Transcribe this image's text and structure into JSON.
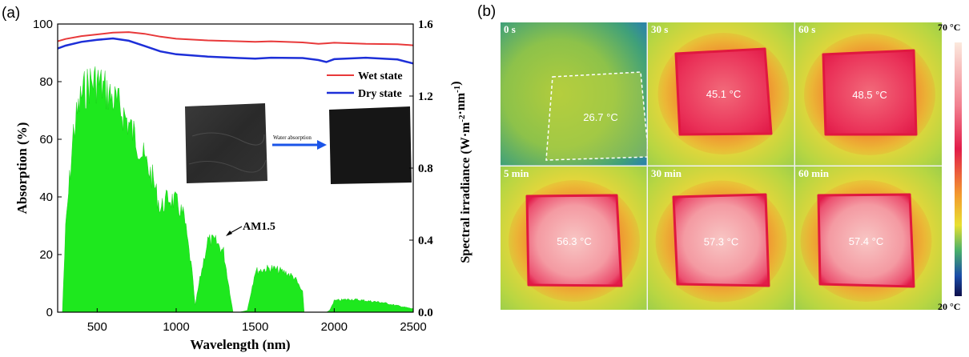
{
  "panel_a_label": "(a)",
  "panel_b_label": "(b)",
  "chart_data": [
    {
      "type": "line",
      "xlabel": "Wavelength (nm)",
      "ylabel": "Absorption (%)",
      "y2label": "Spectral irradiance (W·m-2·nm-1)",
      "xlim": [
        250,
        2500
      ],
      "ylim": [
        0,
        100
      ],
      "y2lim": [
        0,
        1.6
      ],
      "xticks": [
        "500",
        "1000",
        "1500",
        "2000",
        "2500"
      ],
      "yticks": [
        "0",
        "20",
        "40",
        "60",
        "80",
        "100"
      ],
      "y2ticks": [
        "0.0",
        "0.4",
        "0.8",
        "1.2",
        "1.6"
      ],
      "legend_position": "top-right",
      "series": [
        {
          "name": "Wet state",
          "color": "#e8393a",
          "x": [
            250,
            300,
            400,
            500,
            600,
            700,
            800,
            900,
            1000,
            1200,
            1400,
            1500,
            1600,
            1800,
            1900,
            1950,
            2000,
            2200,
            2400,
            2500
          ],
          "y": [
            94,
            94.8,
            95.8,
            96.4,
            97,
            97.2,
            96.6,
            95.6,
            94.9,
            94.3,
            94,
            93.8,
            94,
            93.6,
            93.1,
            93.3,
            93.5,
            93.1,
            93,
            92.6
          ]
        },
        {
          "name": "Dry state",
          "color": "#1d2fd8",
          "x": [
            250,
            300,
            400,
            500,
            600,
            700,
            800,
            900,
            1000,
            1200,
            1400,
            1500,
            1600,
            1800,
            1900,
            1950,
            2000,
            2200,
            2400,
            2500
          ],
          "y": [
            91.5,
            92.5,
            93.8,
            94.5,
            95,
            94.2,
            92.4,
            90.5,
            89.5,
            88.7,
            88.2,
            88,
            88.3,
            88.2,
            87.5,
            86.8,
            87.8,
            88.3,
            87.7,
            86.3
          ]
        },
        {
          "name": "AM1.5",
          "color": "#1ee81e",
          "type": "area",
          "axis": "right",
          "x": [
            280,
            300,
            350,
            400,
            450,
            500,
            550,
            600,
            650,
            700,
            750,
            800,
            850,
            900,
            950,
            1000,
            1050,
            1100,
            1120,
            1150,
            1200,
            1250,
            1300,
            1340,
            1360,
            1400,
            1450,
            1500,
            1600,
            1700,
            1750,
            1800,
            1810,
            1950,
            1970,
            2000,
            2100,
            2200,
            2300,
            2400,
            2500
          ],
          "y": [
            0,
            0.5,
            1.1,
            1.32,
            1.4,
            1.41,
            1.36,
            1.3,
            1.24,
            1.15,
            1.05,
            0.93,
            0.82,
            0.63,
            0.7,
            0.67,
            0.58,
            0.25,
            0.04,
            0.2,
            0.44,
            0.43,
            0.37,
            0.12,
            0.0,
            0.0,
            0.01,
            0.25,
            0.27,
            0.24,
            0.21,
            0.12,
            0.0,
            0.0,
            0.01,
            0.07,
            0.08,
            0.07,
            0.06,
            0.04,
            0.02
          ]
        }
      ],
      "annotations": {
        "am15_label": "AM1.5",
        "inset_arrow_label": "Water absorption"
      }
    },
    {
      "type": "heatmap",
      "colorbar_max": "70 °C",
      "colorbar_min": "20 °C",
      "cells": [
        {
          "time": "0 s",
          "temperature": "26.7 °C",
          "row": 0,
          "col": 0,
          "level": 0.15
        },
        {
          "time": "30 s",
          "temperature": "45.1 °C",
          "row": 0,
          "col": 1,
          "level": 0.5
        },
        {
          "time": "60 s",
          "temperature": "48.5 °C",
          "row": 0,
          "col": 2,
          "level": 0.57
        },
        {
          "time": "5 min",
          "temperature": "56.3 °C",
          "row": 1,
          "col": 0,
          "level": 0.73
        },
        {
          "time": "30 min",
          "temperature": "57.3 °C",
          "row": 1,
          "col": 1,
          "level": 0.75
        },
        {
          "time": "60 min",
          "temperature": "57.4 °C",
          "row": 1,
          "col": 2,
          "level": 0.75
        }
      ]
    }
  ]
}
